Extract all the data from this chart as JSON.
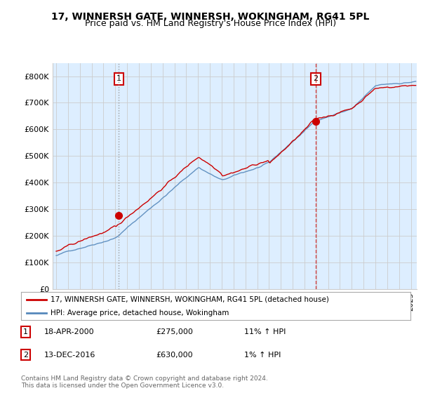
{
  "title": "17, WINNERSH GATE, WINNERSH, WOKINGHAM, RG41 5PL",
  "subtitle": "Price paid vs. HM Land Registry's House Price Index (HPI)",
  "ylabel_ticks": [
    "£0",
    "£100K",
    "£200K",
    "£300K",
    "£400K",
    "£500K",
    "£600K",
    "£700K",
    "£800K"
  ],
  "ytick_values": [
    0,
    100000,
    200000,
    300000,
    400000,
    500000,
    600000,
    700000,
    800000
  ],
  "ylim": [
    0,
    850000
  ],
  "red_color": "#cc0000",
  "blue_color": "#5588bb",
  "bg_fill": "#ddeeff",
  "vline1_color": "#aaaaaa",
  "vline2_color": "#cc0000",
  "sale1_year": 2000.3,
  "sale1_value": 275000,
  "sale2_year": 2016.95,
  "sale2_value": 630000,
  "legend_line1": "17, WINNERSH GATE, WINNERSH, WOKINGHAM, RG41 5PL (detached house)",
  "legend_line2": "HPI: Average price, detached house, Wokingham",
  "table_row1": [
    "1",
    "18-APR-2000",
    "£275,000",
    "11% ↑ HPI"
  ],
  "table_row2": [
    "2",
    "13-DEC-2016",
    "£630,000",
    "1% ↑ HPI"
  ],
  "footer": "Contains HM Land Registry data © Crown copyright and database right 2024.\nThis data is licensed under the Open Government Licence v3.0.",
  "bg_color": "#ffffff",
  "grid_color": "#cccccc",
  "title_fontsize": 10,
  "subtitle_fontsize": 9
}
